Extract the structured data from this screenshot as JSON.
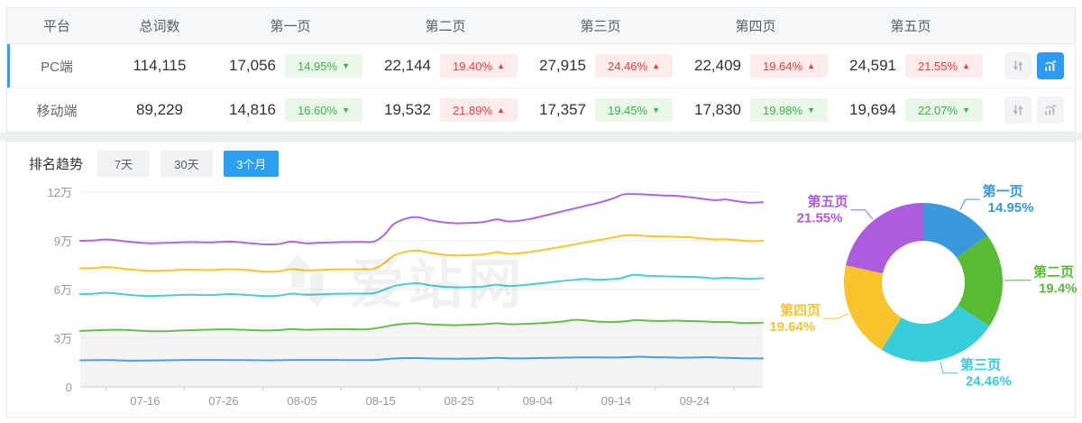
{
  "table": {
    "headers": {
      "platform": "平台",
      "total": "总词数",
      "pages": [
        "第一页",
        "第二页",
        "第三页",
        "第四页",
        "第五页"
      ]
    },
    "rows": [
      {
        "platform": "PC端",
        "total": "114,115",
        "selected": true,
        "chart_active": true,
        "pages": [
          {
            "count": "17,056",
            "pct": "14.95%",
            "dir": "down"
          },
          {
            "count": "22,144",
            "pct": "19.40%",
            "dir": "up"
          },
          {
            "count": "27,915",
            "pct": "24.46%",
            "dir": "up"
          },
          {
            "count": "22,409",
            "pct": "19.64%",
            "dir": "up"
          },
          {
            "count": "24,591",
            "pct": "21.55%",
            "dir": "up"
          }
        ]
      },
      {
        "platform": "移动端",
        "total": "89,229",
        "selected": false,
        "chart_active": false,
        "pages": [
          {
            "count": "14,816",
            "pct": "16.60%",
            "dir": "down"
          },
          {
            "count": "19,532",
            "pct": "21.89%",
            "dir": "up"
          },
          {
            "count": "17,357",
            "pct": "19.45%",
            "dir": "down"
          },
          {
            "count": "17,830",
            "pct": "19.98%",
            "dir": "down"
          },
          {
            "count": "19,694",
            "pct": "22.07%",
            "dir": "down"
          }
        ]
      }
    ]
  },
  "trend": {
    "title": "排名趋势",
    "tabs": [
      {
        "label": "7天",
        "active": false
      },
      {
        "label": "30天",
        "active": false
      },
      {
        "label": "3个月",
        "active": true
      }
    ]
  },
  "watermark": {
    "text": "爱站网"
  },
  "colors": {
    "accent": "#2b9ff2",
    "badge_up": "#e8403d",
    "badge_down": "#3cb344",
    "line_blue": "#41a1ec",
    "line_green": "#62c14a",
    "line_cyan": "#44cfda",
    "line_yellow": "#f9c52f",
    "line_purple": "#b066e2"
  },
  "chart_data": [
    {
      "type": "line",
      "title": "排名趋势 3个月",
      "x_labels": [
        "07-16",
        "07-26",
        "08-05",
        "08-15",
        "08-25",
        "09-04",
        "09-14",
        "09-24"
      ],
      "x_label_pos_pct": [
        9.5,
        21,
        32.5,
        44,
        55.5,
        67,
        78.5,
        90
      ],
      "y_ticks": [
        "0",
        "3万",
        "6万",
        "9万",
        "12万"
      ],
      "y_unit": "万",
      "ylim_wan": [
        0,
        12
      ],
      "grid": true,
      "legend_position": "none",
      "series": [
        {
          "name": "第五页",
          "color": "#b066e2",
          "area": false,
          "points": [
            [
              0,
              9.0
            ],
            [
              2,
              9.02
            ],
            [
              4,
              9.08
            ],
            [
              7,
              8.95
            ],
            [
              10,
              8.85
            ],
            [
              13,
              8.88
            ],
            [
              16,
              8.92
            ],
            [
              19,
              8.9
            ],
            [
              22,
              8.95
            ],
            [
              25,
              8.85
            ],
            [
              27,
              8.78
            ],
            [
              29,
              8.8
            ],
            [
              31,
              8.95
            ],
            [
              33,
              8.85
            ],
            [
              35,
              8.88
            ],
            [
              38,
              8.92
            ],
            [
              41,
              8.93
            ],
            [
              43,
              8.95
            ],
            [
              44.5,
              9.35
            ],
            [
              46,
              10.05
            ],
            [
              48,
              10.4
            ],
            [
              49.5,
              10.45
            ],
            [
              51,
              10.3
            ],
            [
              53,
              10.15
            ],
            [
              55,
              10.08
            ],
            [
              57,
              10.1
            ],
            [
              59,
              10.15
            ],
            [
              61,
              10.32
            ],
            [
              62.5,
              10.2
            ],
            [
              64,
              10.22
            ],
            [
              66,
              10.35
            ],
            [
              68,
              10.55
            ],
            [
              70,
              10.75
            ],
            [
              72,
              10.95
            ],
            [
              74,
              11.15
            ],
            [
              76,
              11.35
            ],
            [
              78,
              11.6
            ],
            [
              79.5,
              11.85
            ],
            [
              81,
              11.88
            ],
            [
              83,
              11.85
            ],
            [
              85,
              11.8
            ],
            [
              87,
              11.78
            ],
            [
              89,
              11.7
            ],
            [
              91,
              11.6
            ],
            [
              93,
              11.5
            ],
            [
              94.5,
              11.55
            ],
            [
              96,
              11.45
            ],
            [
              98,
              11.35
            ],
            [
              100,
              11.38
            ]
          ]
        },
        {
          "name": "第四页",
          "color": "#f9c52f",
          "area": false,
          "points": [
            [
              0,
              7.3
            ],
            [
              2,
              7.32
            ],
            [
              4,
              7.38
            ],
            [
              7,
              7.25
            ],
            [
              10,
              7.15
            ],
            [
              13,
              7.18
            ],
            [
              16,
              7.22
            ],
            [
              19,
              7.2
            ],
            [
              22,
              7.25
            ],
            [
              25,
              7.18
            ],
            [
              27,
              7.1
            ],
            [
              29,
              7.12
            ],
            [
              31,
              7.25
            ],
            [
              33,
              7.18
            ],
            [
              35,
              7.2
            ],
            [
              38,
              7.24
            ],
            [
              41,
              7.25
            ],
            [
              43,
              7.28
            ],
            [
              44.5,
              7.6
            ],
            [
              46,
              8.1
            ],
            [
              48,
              8.35
            ],
            [
              49.5,
              8.4
            ],
            [
              51,
              8.28
            ],
            [
              53,
              8.15
            ],
            [
              55,
              8.1
            ],
            [
              57,
              8.12
            ],
            [
              59,
              8.15
            ],
            [
              61,
              8.3
            ],
            [
              62.5,
              8.2
            ],
            [
              64,
              8.22
            ],
            [
              66,
              8.32
            ],
            [
              68,
              8.45
            ],
            [
              70,
              8.6
            ],
            [
              72,
              8.75
            ],
            [
              74,
              8.9
            ],
            [
              76,
              9.05
            ],
            [
              78,
              9.2
            ],
            [
              79.5,
              9.32
            ],
            [
              81,
              9.35
            ],
            [
              83,
              9.3
            ],
            [
              85,
              9.28
            ],
            [
              87,
              9.25
            ],
            [
              89,
              9.22
            ],
            [
              91,
              9.15
            ],
            [
              93,
              9.08
            ],
            [
              94.5,
              9.1
            ],
            [
              96,
              9.05
            ],
            [
              98,
              8.98
            ],
            [
              100,
              9.0
            ]
          ]
        },
        {
          "name": "第三页",
          "color": "#44cfda",
          "area": false,
          "points": [
            [
              0,
              5.72
            ],
            [
              2,
              5.74
            ],
            [
              4,
              5.8
            ],
            [
              7,
              5.68
            ],
            [
              10,
              5.6
            ],
            [
              13,
              5.64
            ],
            [
              16,
              5.68
            ],
            [
              19,
              5.66
            ],
            [
              22,
              5.72
            ],
            [
              25,
              5.65
            ],
            [
              27,
              5.6
            ],
            [
              29,
              5.62
            ],
            [
              31,
              5.74
            ],
            [
              33,
              5.68
            ],
            [
              35,
              5.7
            ],
            [
              38,
              5.74
            ],
            [
              41,
              5.75
            ],
            [
              43,
              5.77
            ],
            [
              44.5,
              5.98
            ],
            [
              46,
              6.22
            ],
            [
              48,
              6.35
            ],
            [
              49.5,
              6.38
            ],
            [
              51,
              6.28
            ],
            [
              53,
              6.18
            ],
            [
              55,
              6.13
            ],
            [
              57,
              6.15
            ],
            [
              59,
              6.18
            ],
            [
              61,
              6.3
            ],
            [
              62.5,
              6.22
            ],
            [
              64,
              6.24
            ],
            [
              66,
              6.32
            ],
            [
              68,
              6.4
            ],
            [
              70,
              6.5
            ],
            [
              72,
              6.58
            ],
            [
              74,
              6.65
            ],
            [
              75.5,
              6.6
            ],
            [
              77,
              6.62
            ],
            [
              79,
              6.68
            ],
            [
              81,
              6.9
            ],
            [
              83,
              6.85
            ],
            [
              85,
              6.82
            ],
            [
              87,
              6.8
            ],
            [
              89,
              6.78
            ],
            [
              91,
              6.75
            ],
            [
              93,
              6.68
            ],
            [
              94.5,
              6.72
            ],
            [
              96,
              6.7
            ],
            [
              98,
              6.65
            ],
            [
              100,
              6.7
            ]
          ]
        },
        {
          "name": "第二页",
          "color": "#62c14a",
          "area": true,
          "points": [
            [
              0,
              3.45
            ],
            [
              3,
              3.5
            ],
            [
              6,
              3.52
            ],
            [
              9,
              3.46
            ],
            [
              12,
              3.43
            ],
            [
              15,
              3.48
            ],
            [
              18,
              3.52
            ],
            [
              21,
              3.55
            ],
            [
              24,
              3.52
            ],
            [
              27,
              3.48
            ],
            [
              29,
              3.5
            ],
            [
              31,
              3.56
            ],
            [
              33,
              3.52
            ],
            [
              36,
              3.55
            ],
            [
              39,
              3.56
            ],
            [
              42,
              3.55
            ],
            [
              44.5,
              3.7
            ],
            [
              46,
              3.82
            ],
            [
              48,
              3.9
            ],
            [
              49.5,
              3.92
            ],
            [
              51,
              3.86
            ],
            [
              53,
              3.82
            ],
            [
              55,
              3.8
            ],
            [
              57,
              3.83
            ],
            [
              59,
              3.86
            ],
            [
              61,
              3.92
            ],
            [
              63,
              3.86
            ],
            [
              65,
              3.88
            ],
            [
              67,
              3.92
            ],
            [
              69,
              3.97
            ],
            [
              71,
              4.05
            ],
            [
              72.5,
              4.13
            ],
            [
              74,
              4.1
            ],
            [
              76,
              4.02
            ],
            [
              78,
              4.0
            ],
            [
              80,
              4.05
            ],
            [
              81.5,
              4.12
            ],
            [
              83,
              4.08
            ],
            [
              85,
              4.06
            ],
            [
              87,
              4.08
            ],
            [
              89,
              4.06
            ],
            [
              91,
              4.04
            ],
            [
              93,
              4.0
            ],
            [
              95,
              4.0
            ],
            [
              97,
              3.94
            ],
            [
              100,
              3.96
            ]
          ]
        },
        {
          "name": "第一页",
          "color": "#41a1ec",
          "area": false,
          "points": [
            [
              0,
              1.64
            ],
            [
              4,
              1.65
            ],
            [
              8,
              1.62
            ],
            [
              12,
              1.64
            ],
            [
              16,
              1.66
            ],
            [
              20,
              1.66
            ],
            [
              24,
              1.65
            ],
            [
              28,
              1.64
            ],
            [
              32,
              1.66
            ],
            [
              36,
              1.66
            ],
            [
              40,
              1.65
            ],
            [
              43,
              1.66
            ],
            [
              45,
              1.72
            ],
            [
              47,
              1.77
            ],
            [
              49,
              1.78
            ],
            [
              51,
              1.76
            ],
            [
              54,
              1.74
            ],
            [
              57,
              1.74
            ],
            [
              59,
              1.76
            ],
            [
              61,
              1.79
            ],
            [
              63,
              1.76
            ],
            [
              65,
              1.76
            ],
            [
              67,
              1.78
            ],
            [
              70,
              1.8
            ],
            [
              73,
              1.82
            ],
            [
              76,
              1.82
            ],
            [
              78,
              1.81
            ],
            [
              80,
              1.83
            ],
            [
              82,
              1.86
            ],
            [
              84,
              1.83
            ],
            [
              86,
              1.82
            ],
            [
              88,
              1.8
            ],
            [
              90,
              1.81
            ],
            [
              92,
              1.83
            ],
            [
              94,
              1.8
            ],
            [
              96,
              1.78
            ],
            [
              98,
              1.76
            ],
            [
              100,
              1.76
            ]
          ]
        }
      ]
    },
    {
      "type": "pie",
      "donut": true,
      "start_angle_deg": 0,
      "clockwise": true,
      "slices": [
        {
          "label": "第一页",
          "value_pct": 14.95,
          "display": "14.95%",
          "color": "#3a98dc"
        },
        {
          "label": "第二页",
          "value_pct": 19.4,
          "display": "19.4%",
          "color": "#57bb33"
        },
        {
          "label": "第三页",
          "value_pct": 24.46,
          "display": "24.46%",
          "color": "#38cdda"
        },
        {
          "label": "第四页",
          "value_pct": 19.64,
          "display": "19.64%",
          "color": "#f7c42e"
        },
        {
          "label": "第五页",
          "value_pct": 21.55,
          "display": "21.55%",
          "color": "#ab5cdf"
        }
      ]
    }
  ]
}
